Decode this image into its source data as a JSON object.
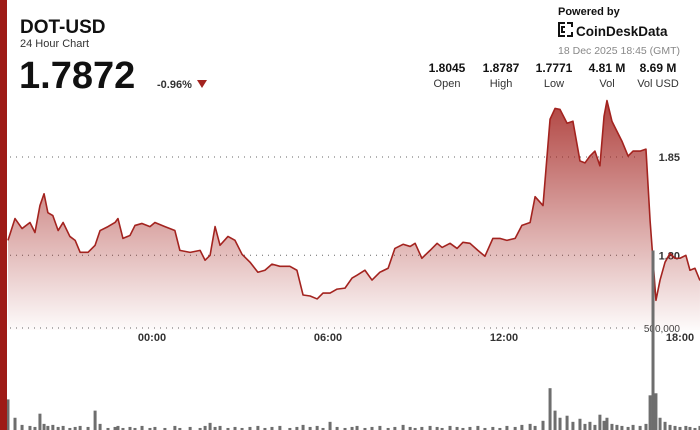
{
  "header": {
    "symbol": "DOT-USD",
    "subtitle": "24 Hour Chart",
    "price": "1.7872",
    "change": "-0.96%"
  },
  "branding": {
    "powered": "Powered by",
    "brand": "CoinDeskData",
    "timestamp": "18 Dec 2025 18:45 (GMT)"
  },
  "stats": [
    {
      "value": "1.8045",
      "label": "Open"
    },
    {
      "value": "1.8787",
      "label": "High"
    },
    {
      "value": "1.7771",
      "label": "Low"
    },
    {
      "value": "4.81 M",
      "label": "Vol"
    },
    {
      "value": "8.69 M",
      "label": "Vol USD"
    }
  ],
  "chart_data": {
    "type": "area",
    "x": [
      -4.91,
      -4.67,
      -4.43,
      -4.16,
      -3.99,
      -3.82,
      -3.68,
      -3.55,
      -3.38,
      -3.2,
      -3.03,
      -2.8,
      -2.62,
      -2.45,
      -2.18,
      -1.94,
      -1.77,
      -1.5,
      -1.26,
      -1.16,
      -0.99,
      -0.75,
      -0.58,
      -0.34,
      -0.07,
      0.1,
      0.44,
      0.78,
      0.95,
      1.3,
      1.64,
      1.81,
      1.98,
      2.15,
      2.32,
      2.59,
      2.83,
      3.07,
      3.34,
      3.61,
      3.85,
      4.09,
      4.36,
      4.7,
      4.94,
      5.15,
      5.39,
      5.63,
      5.83,
      6.07,
      6.31,
      6.58,
      6.82,
      6.99,
      7.26,
      7.5,
      7.77,
      8.05,
      8.28,
      8.56,
      8.8,
      8.97,
      9.2,
      9.48,
      9.72,
      9.89,
      10.16,
      10.4,
      10.6,
      10.84,
      11.11,
      11.35,
      11.62,
      11.86,
      12.1,
      12.38,
      12.61,
      12.89,
      13.06,
      13.33,
      13.57,
      13.74,
      13.91,
      14.15,
      14.35,
      14.59,
      14.76,
      14.93,
      15.1,
      15.27,
      15.41,
      15.51,
      15.68,
      15.85,
      16.02,
      16.23,
      16.4,
      16.64,
      16.84,
      16.98,
      17.08,
      17.18,
      17.32,
      17.49,
      17.66,
      17.83,
      18.0,
      18.2,
      18.34,
      18.51,
      18.68
    ],
    "series": [
      {
        "name": "Price",
        "color": "#a3231f",
        "values": [
          1.8076,
          1.8187,
          1.8136,
          1.8167,
          1.8116,
          1.8253,
          1.8313,
          1.8217,
          1.8202,
          1.8126,
          1.8167,
          1.8096,
          1.8076,
          1.8015,
          1.8015,
          1.8051,
          1.8126,
          1.8146,
          1.8167,
          1.8187,
          1.8086,
          1.8101,
          1.8152,
          1.8162,
          1.8146,
          1.8167,
          1.8146,
          1.8126,
          1.8025,
          1.8015,
          1.8025,
          1.7975,
          1.8,
          1.8146,
          1.8051,
          1.8096,
          1.8076,
          1.8005,
          1.7965,
          1.7914,
          1.7924,
          1.7955,
          1.7944,
          1.7944,
          1.7924,
          1.7798,
          1.7793,
          1.7778,
          1.7808,
          1.7808,
          1.7828,
          1.7833,
          1.7884,
          1.7899,
          1.7924,
          1.7874,
          1.7914,
          1.7934,
          1.8035,
          1.8056,
          1.8045,
          1.8061,
          1.7985,
          1.8025,
          1.8061,
          1.804,
          1.8061,
          1.8035,
          1.8066,
          1.8061,
          1.8025,
          1.7995,
          1.8086,
          1.8086,
          1.8076,
          1.8086,
          1.8152,
          1.8167,
          1.8298,
          1.8253,
          1.8692,
          1.8747,
          1.8742,
          1.8672,
          1.8682,
          1.848,
          1.847,
          1.8505,
          1.853,
          1.8455,
          1.8707,
          1.8787,
          1.8682,
          1.8631,
          1.8581,
          1.8505,
          1.853,
          1.853,
          1.854,
          1.8177,
          1.7975,
          1.7771,
          1.7874,
          1.7965,
          1.801,
          1.7985,
          1.7985,
          1.8,
          1.7924,
          1.7934,
          1.7872
        ]
      },
      {
        "name": "Volume",
        "color": "#6e6e6e",
        "axis": "y2",
        "values": [
          150000,
          60000,
          25000,
          20000,
          15000,
          80000,
          30000,
          20000,
          25000,
          15000,
          20000,
          10000,
          15000,
          20000,
          15000,
          95000,
          30000,
          10000,
          15000,
          20000,
          10000,
          15000,
          10000,
          20000,
          10000,
          15000,
          10000,
          20000,
          10000,
          15000,
          10000,
          20000,
          35000,
          15000,
          20000,
          10000,
          15000,
          10000,
          15000,
          20000,
          10000,
          15000,
          20000,
          10000,
          15000,
          25000,
          15000,
          20000,
          10000,
          40000,
          15000,
          10000,
          15000,
          20000,
          10000,
          15000,
          20000,
          10000,
          15000,
          25000,
          15000,
          10000,
          15000,
          20000,
          15000,
          10000,
          20000,
          15000,
          10000,
          15000,
          20000,
          10000,
          15000,
          10000,
          20000,
          15000,
          25000,
          30000,
          20000,
          45000,
          205000,
          95000,
          60000,
          70000,
          40000,
          55000,
          30000,
          40000,
          25000,
          75000,
          45000,
          60000,
          30000,
          25000,
          20000,
          15000,
          25000,
          20000,
          30000,
          170000,
          880000,
          180000,
          60000,
          40000,
          25000,
          20000,
          15000,
          20000,
          15000,
          10000,
          20000
        ]
      }
    ],
    "xlim": [
      -5.25,
      18.75
    ],
    "xticks": [
      {
        "value": 0,
        "label": "00:00"
      },
      {
        "value": 6,
        "label": "06:00"
      },
      {
        "value": 12,
        "label": "12:00"
      },
      {
        "value": 18,
        "label": "18:00"
      }
    ],
    "ylim": [
      1.762,
      1.879
    ],
    "yticks": [
      {
        "value": 1.8,
        "label": "1.80"
      },
      1.85
    ],
    "y2lim": [
      0,
      1000000
    ],
    "y2ticks": [
      {
        "value": 500000,
        "label": "500,000"
      }
    ],
    "grid": true
  }
}
